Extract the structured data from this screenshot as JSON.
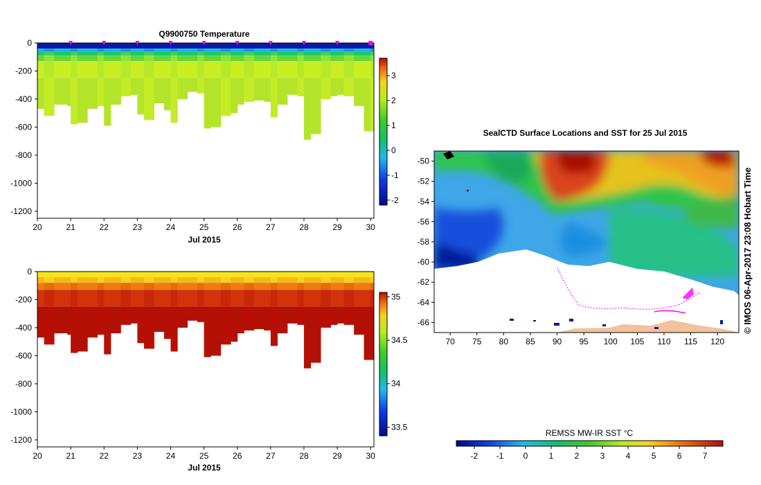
{
  "chart_data": [
    {
      "type": "heatmap",
      "title": "Q9900750  Temperature",
      "xlabel": "Jul 2015",
      "x_ticks": [
        "20",
        "21",
        "22",
        "23",
        "24",
        "25",
        "26",
        "27",
        "28",
        "29",
        "30"
      ],
      "xlim": [
        20,
        30.1
      ],
      "ylim": [
        -1250,
        0
      ],
      "y_ticks": [
        "0",
        "-200",
        "-400",
        "-600",
        "-800",
        "-1000",
        "-1200"
      ],
      "colorbar": {
        "min": -2.2,
        "max": 3.7,
        "ticks": [
          "3",
          "2",
          "1",
          "0",
          "-1",
          "-2"
        ]
      },
      "profile_times": [
        20.0,
        20.2,
        20.5,
        20.9,
        21.0,
        21.2,
        21.5,
        21.8,
        22.0,
        22.2,
        22.5,
        22.8,
        23.0,
        23.2,
        23.5,
        23.8,
        24.0,
        24.2,
        24.5,
        24.8,
        25.0,
        25.2,
        25.5,
        25.8,
        26.0,
        26.2,
        26.5,
        26.8,
        27.0,
        27.2,
        27.5,
        27.8,
        28.0,
        28.2,
        28.5,
        28.8,
        29.0,
        29.2,
        29.5,
        29.8,
        30.0
      ],
      "profile_max_depth": [
        470,
        520,
        440,
        450,
        580,
        570,
        470,
        450,
        590,
        440,
        380,
        370,
        510,
        550,
        430,
        480,
        570,
        400,
        350,
        360,
        610,
        600,
        520,
        500,
        440,
        420,
        410,
        420,
        530,
        440,
        370,
        380,
        690,
        650,
        400,
        380,
        370,
        380,
        450,
        630,
        630
      ],
      "cast_markers": [
        21,
        22,
        23,
        24,
        25,
        26,
        27,
        28,
        29,
        30
      ],
      "surface_temperature_range": [
        -2,
        -1
      ],
      "deep_temperature_range": [
        1,
        2.3
      ]
    },
    {
      "type": "heatmap",
      "title": "",
      "xlabel": "Jul 2015",
      "x_ticks": [
        "20",
        "21",
        "22",
        "23",
        "24",
        "25",
        "26",
        "27",
        "28",
        "29",
        "30"
      ],
      "xlim": [
        20,
        30.1
      ],
      "ylim": [
        -1250,
        0
      ],
      "y_ticks": [
        "0",
        "-200",
        "-400",
        "-600",
        "-800",
        "-1000",
        "-1200"
      ],
      "colorbar": {
        "min": 33.4,
        "max": 35.05,
        "ticks": [
          "35",
          "34.5",
          "34",
          "33.5"
        ]
      },
      "surface_salinity_range": [
        34.3,
        34.5
      ],
      "deep_salinity_range": [
        34.7,
        34.75
      ]
    },
    {
      "type": "heatmap",
      "title": "SealCTD Surface Locations and SST for 25 Jul 2015",
      "xlim": [
        67,
        124
      ],
      "ylim": [
        -67,
        -49
      ],
      "x_ticks": [
        "70",
        "75",
        "80",
        "85",
        "90",
        "95",
        "100",
        "105",
        "110",
        "115",
        "120"
      ],
      "y_ticks": [
        "-50",
        "-52",
        "-54",
        "-56",
        "-58",
        "-60",
        "-62",
        "-64",
        "-66"
      ],
      "colorbar_label": "REMSS MW-IR SST °C",
      "colorbar": {
        "min": -2.7,
        "max": 7.7,
        "ticks": [
          "-2",
          "-1",
          "0",
          "1",
          "2",
          "3",
          "4",
          "5",
          "6",
          "7"
        ]
      },
      "track_color": "#ff00ff",
      "land_color": "#f2c29c"
    }
  ],
  "credit": "© IMOS 06-Apr-2017 23:08 Hobart Time"
}
